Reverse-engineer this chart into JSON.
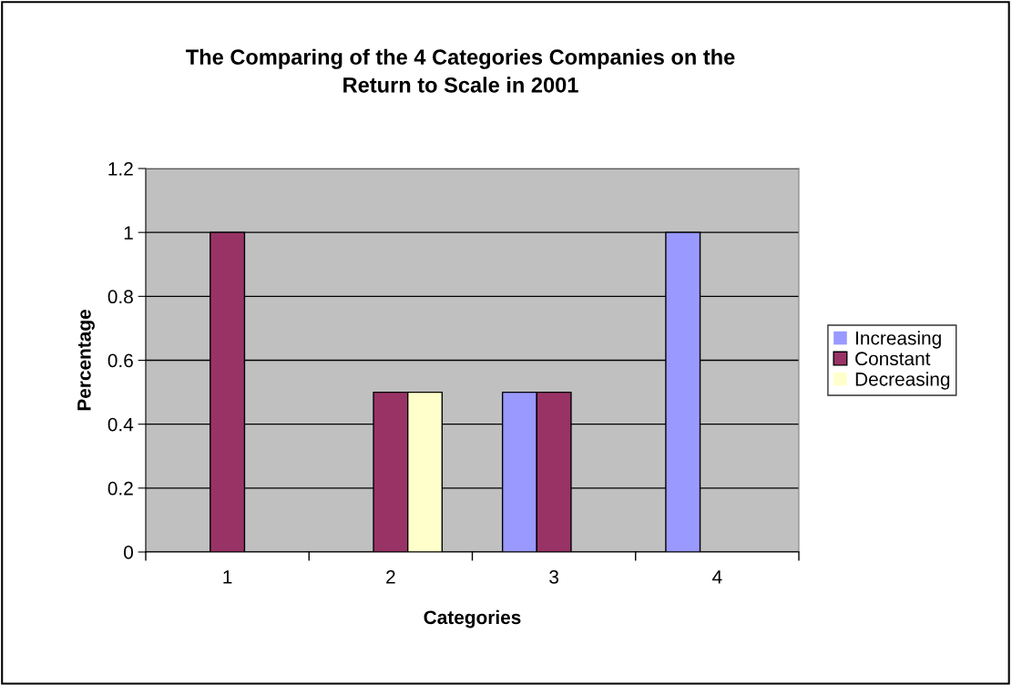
{
  "chart_data": {
    "type": "bar",
    "title": "The Comparing of the 4 Categories Companies on the\nReturn to Scale in 2001",
    "xlabel": "Categories",
    "ylabel": "Percentage",
    "categories": [
      "1",
      "2",
      "3",
      "4"
    ],
    "series": [
      {
        "name": "Increasing",
        "color": "#9999ff",
        "values": [
          0,
          0,
          0.5,
          1
        ]
      },
      {
        "name": "Constant",
        "color": "#993366",
        "values": [
          1,
          0.5,
          0.5,
          0
        ]
      },
      {
        "name": "Decreasing",
        "color": "#ffffcc",
        "values": [
          0,
          0.5,
          0,
          0
        ]
      }
    ],
    "ylim": [
      0,
      1.2
    ],
    "yticks": [
      0,
      0.2,
      0.4,
      0.6,
      0.8,
      1,
      1.2
    ],
    "grid": "y",
    "legend": "right"
  }
}
